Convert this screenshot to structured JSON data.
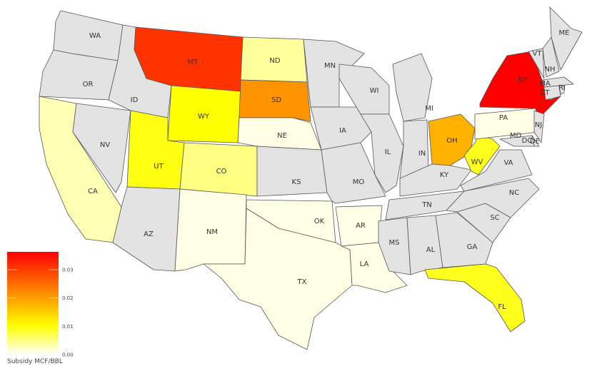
{
  "legend": {
    "title": "Subsidy MCF/BBL",
    "ticks": [
      "0.00",
      "0.01",
      "0.02",
      "0.03"
    ],
    "tick_values": [
      0,
      0.01,
      0.02,
      0.03
    ],
    "range": [
      0,
      0.0363
    ],
    "colors": [
      "#ffffff",
      "#ffff00",
      "#ff8c00",
      "#ff0000"
    ]
  },
  "no_data_color": "#e3e3e3",
  "states": [
    {
      "abbr": "WA",
      "value": null
    },
    {
      "abbr": "OR",
      "value": null
    },
    {
      "abbr": "CA",
      "value": 0.003
    },
    {
      "abbr": "NV",
      "value": null
    },
    {
      "abbr": "ID",
      "value": null
    },
    {
      "abbr": "MT",
      "value": 0.031
    },
    {
      "abbr": "WY",
      "value": 0.01
    },
    {
      "abbr": "UT",
      "value": 0.0095
    },
    {
      "abbr": "CO",
      "value": 0.005
    },
    {
      "abbr": "AZ",
      "value": null
    },
    {
      "abbr": "NM",
      "value": 0.001
    },
    {
      "abbr": "ND",
      "value": 0.004
    },
    {
      "abbr": "SD",
      "value": 0.021
    },
    {
      "abbr": "NE",
      "value": 0.001
    },
    {
      "abbr": "KS",
      "value": null
    },
    {
      "abbr": "OK",
      "value": 0.001
    },
    {
      "abbr": "TX",
      "value": 0.001
    },
    {
      "abbr": "MN",
      "value": null
    },
    {
      "abbr": "IA",
      "value": null
    },
    {
      "abbr": "MO",
      "value": null
    },
    {
      "abbr": "AR",
      "value": 0.001
    },
    {
      "abbr": "LA",
      "value": 0.001
    },
    {
      "abbr": "WI",
      "value": null
    },
    {
      "abbr": "IL",
      "value": null
    },
    {
      "abbr": "MI",
      "value": null
    },
    {
      "abbr": "IN",
      "value": null
    },
    {
      "abbr": "OH",
      "value": 0.018
    },
    {
      "abbr": "KY",
      "value": null
    },
    {
      "abbr": "TN",
      "value": null
    },
    {
      "abbr": "MS",
      "value": null
    },
    {
      "abbr": "AL",
      "value": null
    },
    {
      "abbr": "GA",
      "value": null
    },
    {
      "abbr": "FL",
      "value": 0.009
    },
    {
      "abbr": "SC",
      "value": null
    },
    {
      "abbr": "NC",
      "value": null
    },
    {
      "abbr": "VA",
      "value": null
    },
    {
      "abbr": "WV",
      "value": 0.009
    },
    {
      "abbr": "PA",
      "value": 0.001
    },
    {
      "abbr": "NY",
      "value": 0.0363
    },
    {
      "abbr": "VT",
      "value": null
    },
    {
      "abbr": "NH",
      "value": null
    },
    {
      "abbr": "ME",
      "value": null
    },
    {
      "abbr": "MA",
      "value": null
    },
    {
      "abbr": "CT",
      "value": null
    },
    {
      "abbr": "RI",
      "value": null
    },
    {
      "abbr": "NJ",
      "value": null
    },
    {
      "abbr": "DE",
      "value": null
    },
    {
      "abbr": "MD",
      "value": null
    },
    {
      "abbr": "DC",
      "value": null
    }
  ]
}
